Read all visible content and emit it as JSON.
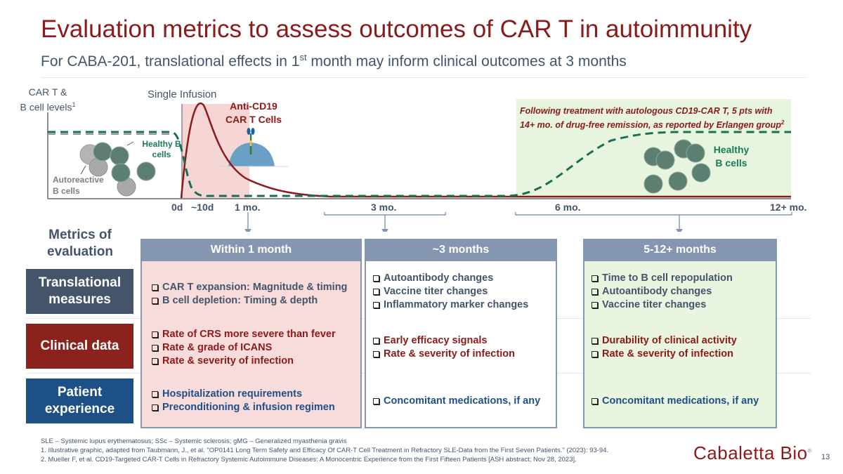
{
  "header": {
    "title": "Evaluation metrics to assess outcomes of CAR T in autoimmunity",
    "subtitle_pre": "For CABA-201, translational effects in 1",
    "subtitle_sup": "st",
    "subtitle_post": " month may inform clinical outcomes at 3 months"
  },
  "graphic": {
    "y_label_line1": "CAR T &",
    "y_label_line2": "B cell levels",
    "y_label_sup": "1",
    "single_infusion": "Single Infusion",
    "anti_cd19_line1": "Anti-CD19",
    "anti_cd19_line2": "CAR T Cells",
    "healthy_b_left_line1": "Healthy B",
    "healthy_b_left_line2": "cells",
    "autoreactive_line1": "Autoreactive",
    "autoreactive_line2": "B cells",
    "erlangen_text": "Following treatment with autologous CD19-CAR T, 5 pts with 14+ mo. of drug-free remission, as reported by Erlangen group",
    "erlangen_sup": "2",
    "healthy_b_right_line1": "Healthy",
    "healthy_b_right_line2": "B cells",
    "timeline_ticks": [
      "0d",
      "~10d",
      "1 mo.",
      "3 mo.",
      "6 mo.",
      "12+ mo."
    ],
    "colors": {
      "car_t_curve": "#8b1a1a",
      "b_cell_dashed": "#1a6e55",
      "infusion_window": "#f6d5d5",
      "remission_window": "#e8f5de"
    }
  },
  "table": {
    "heading_line1": "Metrics of",
    "heading_line2": "evaluation",
    "rows": [
      {
        "label_line1": "Translational",
        "label_line2": "measures",
        "color": "#44546a"
      },
      {
        "label_line1": "Clinical data",
        "label_line2": "",
        "color": "#8b231c"
      },
      {
        "label_line1": "Patient",
        "label_line2": "experience",
        "color": "#1e5088"
      }
    ],
    "columns": [
      {
        "header": "Within 1 month",
        "background": "#f8dcdc",
        "cells": [
          [
            "CAR T expansion: Magnitude & timing",
            "B cell depletion: Timing & depth"
          ],
          [
            "Rate of CRS more severe than fever",
            "Rate & grade of ICANS",
            "Rate & severity of infection"
          ],
          [
            "Hospitalization requirements",
            "Preconditioning & infusion regimen"
          ]
        ]
      },
      {
        "header": "~3 months",
        "background": "#ffffff",
        "cells": [
          [
            "Autoantibody changes",
            "Vaccine titer changes",
            "Inflammatory marker changes"
          ],
          [
            "Early efficacy signals",
            "Rate & severity of infection"
          ],
          [
            "Concomitant medications, if any"
          ]
        ]
      },
      {
        "header": "5-12+ months",
        "background": "#eaf5e0",
        "cells": [
          [
            "Time to B cell repopulation",
            "Autoantibody changes",
            "Vaccine titer changes"
          ],
          [
            "Durability of clinical activity",
            "Rate & severity of infection"
          ],
          [
            "Concomitant medications, if any"
          ]
        ]
      }
    ]
  },
  "footer": {
    "abbrev": "SLE – Systemic lupus erythematosus; SSc – Systemic sclerosis; gMG – Generalized myasthenia gravis",
    "ref1": "1. Illustrative graphic, adapted from Taubmann, J., et al. \"OP0141 Long Term Safety and Efficacy Of CAR-T Cell Treatment in Refractory SLE-Data from the First Seven Patients.\" (2023): 93-94.",
    "ref2": "2. Mueller F, et al. CD19-Targeted CAR-T Cells in Refractory Systemic Autoimmune Diseases: A Monocentric Experience from the First Fifteen Patients [ASH abstract; Nov 28, 2023].",
    "logo": "Cabaletta Bio",
    "logo_mark": "®",
    "page_number": "13"
  }
}
